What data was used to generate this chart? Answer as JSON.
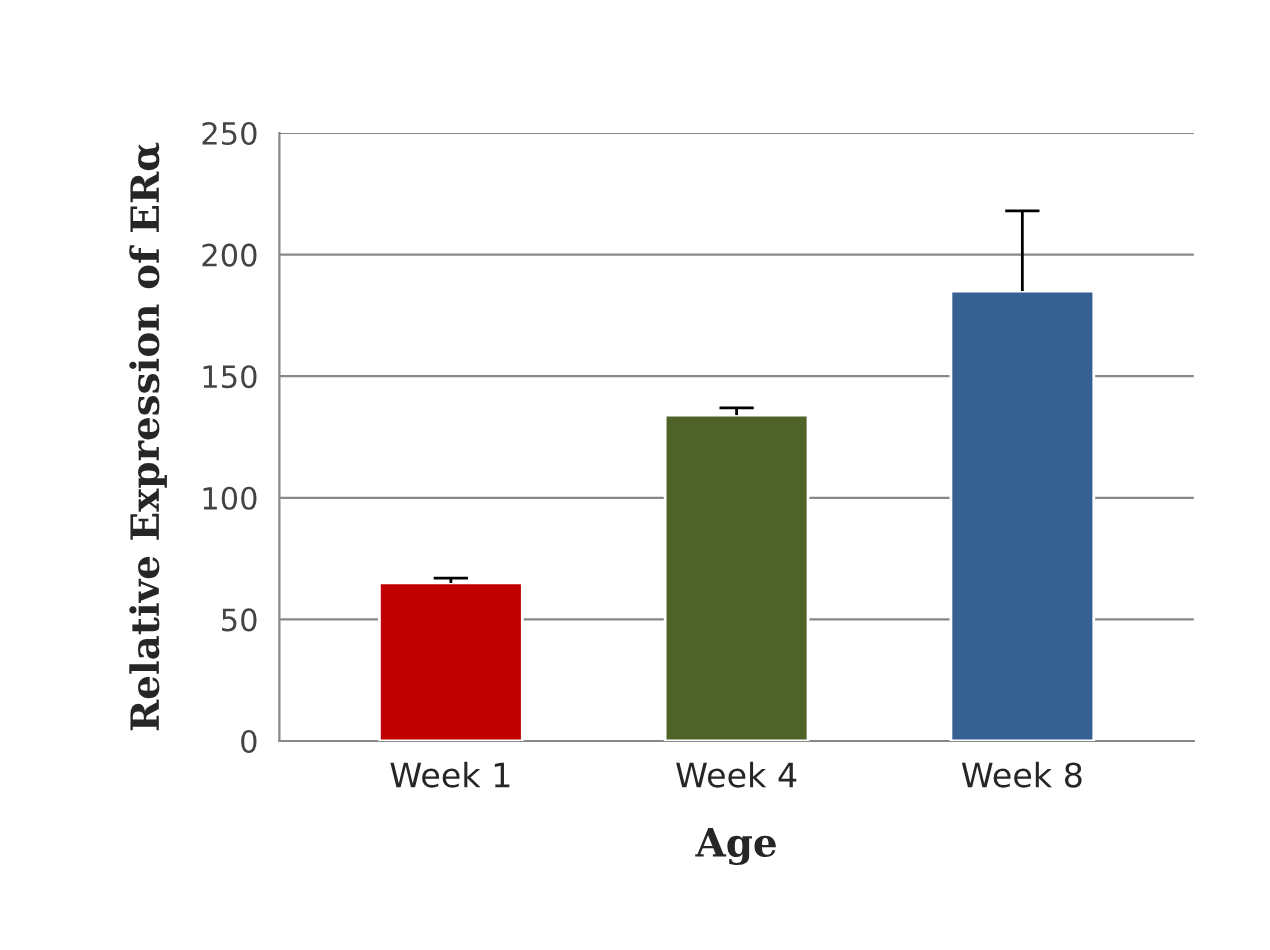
{
  "chart_data": {
    "type": "bar",
    "xlabel": "Age",
    "ylabel": "Relative Expression of ERα",
    "categories": [
      "Week 1",
      "Week 4",
      "Week 8"
    ],
    "values": [
      65,
      134,
      185
    ],
    "errors": [
      [
        65,
        67
      ],
      [
        134,
        137
      ],
      [
        185,
        218
      ]
    ],
    "colors": [
      "#c00000",
      "#4f6228",
      "#376092"
    ],
    "ylim": [
      0,
      250
    ],
    "yticks": [
      0,
      50,
      100,
      150,
      200,
      250
    ],
    "grid": "y"
  }
}
